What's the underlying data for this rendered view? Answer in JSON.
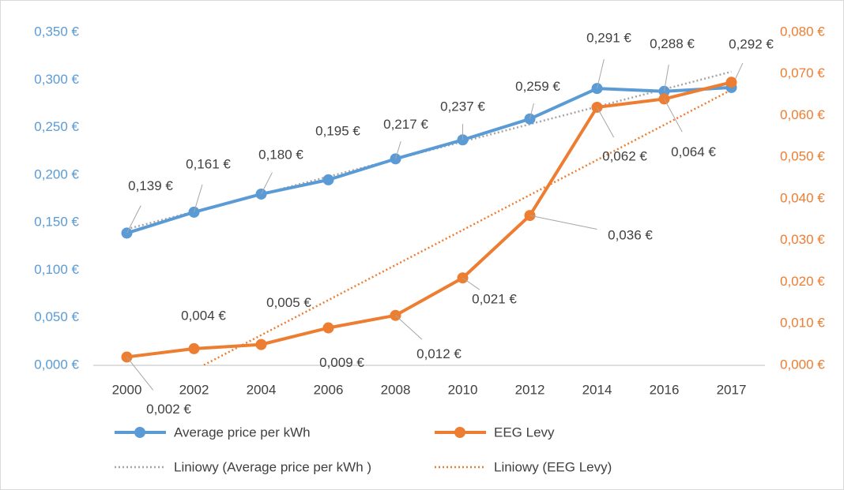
{
  "chart_data": {
    "type": "line",
    "categories": [
      "2000",
      "2002",
      "2004",
      "2006",
      "2008",
      "2010",
      "2012",
      "2014",
      "2016",
      "2017"
    ],
    "ylim": [
      0,
      0.35
    ],
    "yticks": [
      {
        "value": 0,
        "label": "0,000 €"
      },
      {
        "value": 0.05,
        "label": "0,050 €"
      },
      {
        "value": 0.1,
        "label": "0,100 €"
      },
      {
        "value": 0.15,
        "label": "0,150 €"
      },
      {
        "value": 0.2,
        "label": "0,200 €"
      },
      {
        "value": 0.25,
        "label": "0,250 €"
      },
      {
        "value": 0.3,
        "label": "0,300 €"
      },
      {
        "value": 0.35,
        "label": "0,350 €"
      }
    ],
    "y2lim": [
      0,
      0.08
    ],
    "y2ticks": [
      {
        "value": 0,
        "label": "0,000 €"
      },
      {
        "value": 0.01,
        "label": "0,010 €"
      },
      {
        "value": 0.02,
        "label": "0,020 €"
      },
      {
        "value": 0.03,
        "label": "0,030 €"
      },
      {
        "value": 0.04,
        "label": "0,040 €"
      },
      {
        "value": 0.05,
        "label": "0,050 €"
      },
      {
        "value": 0.06,
        "label": "0,060 €"
      },
      {
        "value": 0.07,
        "label": "0,070 €"
      },
      {
        "value": 0.08,
        "label": "0,080 €"
      }
    ],
    "grid": false,
    "series": [
      {
        "name": "Average price per kWh",
        "color": "#5b9bd5",
        "axis": "y",
        "values": [
          0.139,
          0.161,
          0.18,
          0.195,
          0.217,
          0.237,
          0.259,
          0.291,
          0.288,
          0.292
        ],
        "value_labels": [
          "0,139 €",
          "0,161 €",
          "0,180 €",
          "0,195 €",
          "0,217 €",
          "0,237 €",
          "0,259 €",
          "0,291 €",
          "0,288 €",
          "0,292 €"
        ],
        "trendline": {
          "name": "Liniowy (Average price per kWh )",
          "color": "#a5a5a5",
          "style": "dotted"
        }
      },
      {
        "name": "EEG Levy",
        "color": "#ed7d31",
        "axis": "y2",
        "values": [
          0.002,
          0.004,
          0.005,
          0.009,
          0.012,
          0.021,
          0.036,
          0.062,
          0.064,
          0.068
        ],
        "value_labels": [
          "0,002 €",
          "0,004 €",
          "0,005 €",
          "0,009 €",
          "0,012 €",
          "0,021 €",
          "0,036 €",
          "0,062 €",
          "0,064 €",
          null
        ],
        "trendline": {
          "name": "Liniowy (EEG Levy)",
          "color": "#ed7d31",
          "style": "dotted"
        }
      }
    ]
  }
}
